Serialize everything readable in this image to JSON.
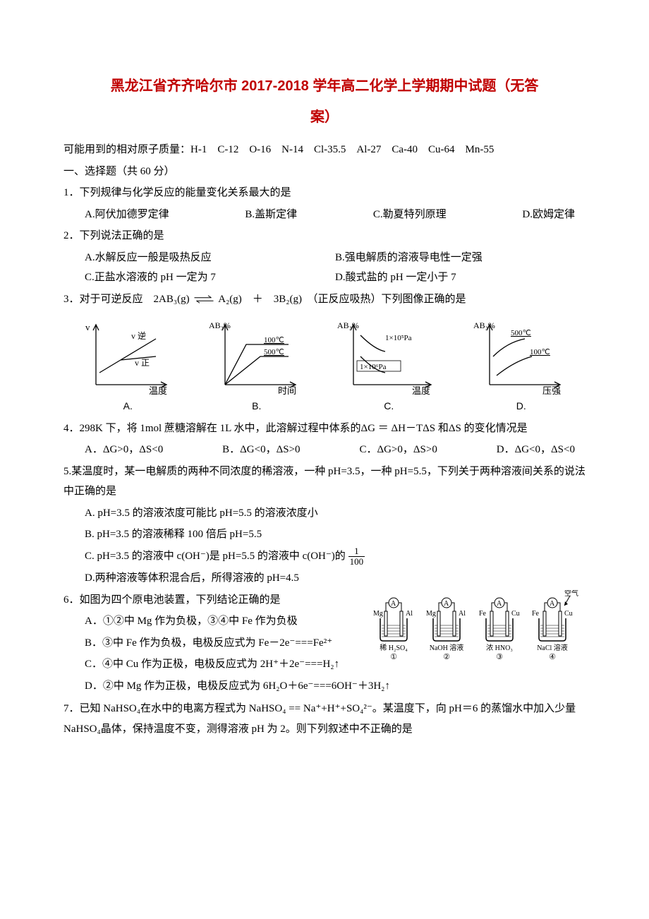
{
  "title_line1": "黑龙江省齐齐哈尔市 2017-2018 学年高二化学上学期期中试题（无答",
  "title_line2": "案）",
  "atomic_masses": "可能用到的相对原子质量：H-1　C-12　O-16　N-14　Cl-35.5　Al-27　Ca-40　Cu-64　Mn-55",
  "section1": "一、选择题（共 60 分）",
  "q1": {
    "stem": "1．下列规律与化学反应的能量变化关系最大的是",
    "A": "A.阿伏加德罗定律",
    "B": "B.盖斯定律",
    "C": "C.勒夏特列原理",
    "D": "D.欧姆定律"
  },
  "q2": {
    "stem": "2．下列说法正确的是",
    "A": "A.水解反应一般是吸热反应",
    "B": "B.强电解质的溶液导电性一定强",
    "C": "C.正盐水溶液的 pH 一定为 7",
    "D": "D.酸式盐的 pH 一定小于 7"
  },
  "q3": {
    "stem_a": "3．对于可逆反应　2AB₃(g) ",
    "stem_b": " A₂(g)　＋　3B₂(g)　（正反应吸热）下列图像正确的是",
    "charts": {
      "A": {
        "y_label": "v",
        "x_label": "温度",
        "curve1": "v 逆",
        "curve2": "v 正",
        "letter": "A."
      },
      "B": {
        "y_label": "AB₃%",
        "x_label": "时间",
        "curve1": "100℃",
        "curve2": "500℃",
        "letter": "B."
      },
      "C": {
        "y_label": "AB₃%",
        "x_label": "温度",
        "curve1": "1×10⁵Pa",
        "curve2": "1×10⁶Pa",
        "letter": "C."
      },
      "D": {
        "y_label": "AB₃%",
        "x_label": "压强",
        "curve1": "500℃",
        "curve2": "100℃",
        "letter": "D."
      }
    }
  },
  "q4": {
    "stem": "4．298K 下，将 1mol 蔗糖溶解在 1L 水中，此溶解过程中体系的ΔG ＝ ΔH－TΔS 和ΔS 的变化情况是",
    "A": "A．ΔG>0，ΔS<0",
    "B": "B．ΔG<0，ΔS>0",
    "C": "C．ΔG>0，ΔS>0",
    "D": "D．ΔG<0，ΔS<0"
  },
  "q5": {
    "stem": "5.某温度时，某一电解质的两种不同浓度的稀溶液，一种 pH=3.5，一种 pH=5.5，下列关于两种溶液间关系的说法中正确的是",
    "A": "A. pH=3.5 的溶液浓度可能比 pH=5.5 的溶液浓度小",
    "B": "B. pH=3.5 的溶液稀释 100 倍后 pH=5.5",
    "C_a": "C. pH=3.5 的溶液中 c(OH⁻)是 pH=5.5 的溶液中 c(OH⁻)的",
    "C_num": "1",
    "C_den": "100",
    "D": "D.两种溶液等体积混合后，所得溶液的 pH=4.5"
  },
  "q6": {
    "stem": "6．如图为四个原电池装置，下列结论正确的是",
    "A": "A．①②中 Mg 作为负极，③④中 Fe 作为负极",
    "B": "B．③中 Fe 作为负极，电极反应式为 Fe－2e⁻===Fe²⁺",
    "C": "C．④中 Cu 作为正极，电极反应式为 2H⁺＋2e⁻===H₂↑",
    "D": "D．②中 Mg 作为正极，电极反应式为 6H₂O＋6e⁻===6OH⁻＋3H₂↑",
    "cells": [
      {
        "left": "Mg",
        "right": "Al",
        "sol": "稀 H₂SO₄",
        "num": "①",
        "air": false
      },
      {
        "left": "Mg",
        "right": "Al",
        "sol": "NaOH 溶液",
        "num": "②",
        "air": false
      },
      {
        "left": "Fe",
        "right": "Cu",
        "sol": "浓 HNO₃",
        "num": "③",
        "air": false
      },
      {
        "left": "Fe",
        "right": "Cu",
        "sol": "NaCl 溶液",
        "num": "④",
        "air": true
      }
    ],
    "air_label": "空气"
  },
  "q7": {
    "stem": "7．已知 NaHSO₄在水中的电离方程式为 NaHSO₄ == Na⁺+H⁺+SO₄²⁻。某温度下，向 pH＝6 的蒸馏水中加入少量 NaHSO₄晶体，保持温度不变，测得溶液 pH 为 2。则下列叙述中不正确的是"
  },
  "colors": {
    "title": "#c00000",
    "text": "#000000",
    "background": "#ffffff"
  }
}
